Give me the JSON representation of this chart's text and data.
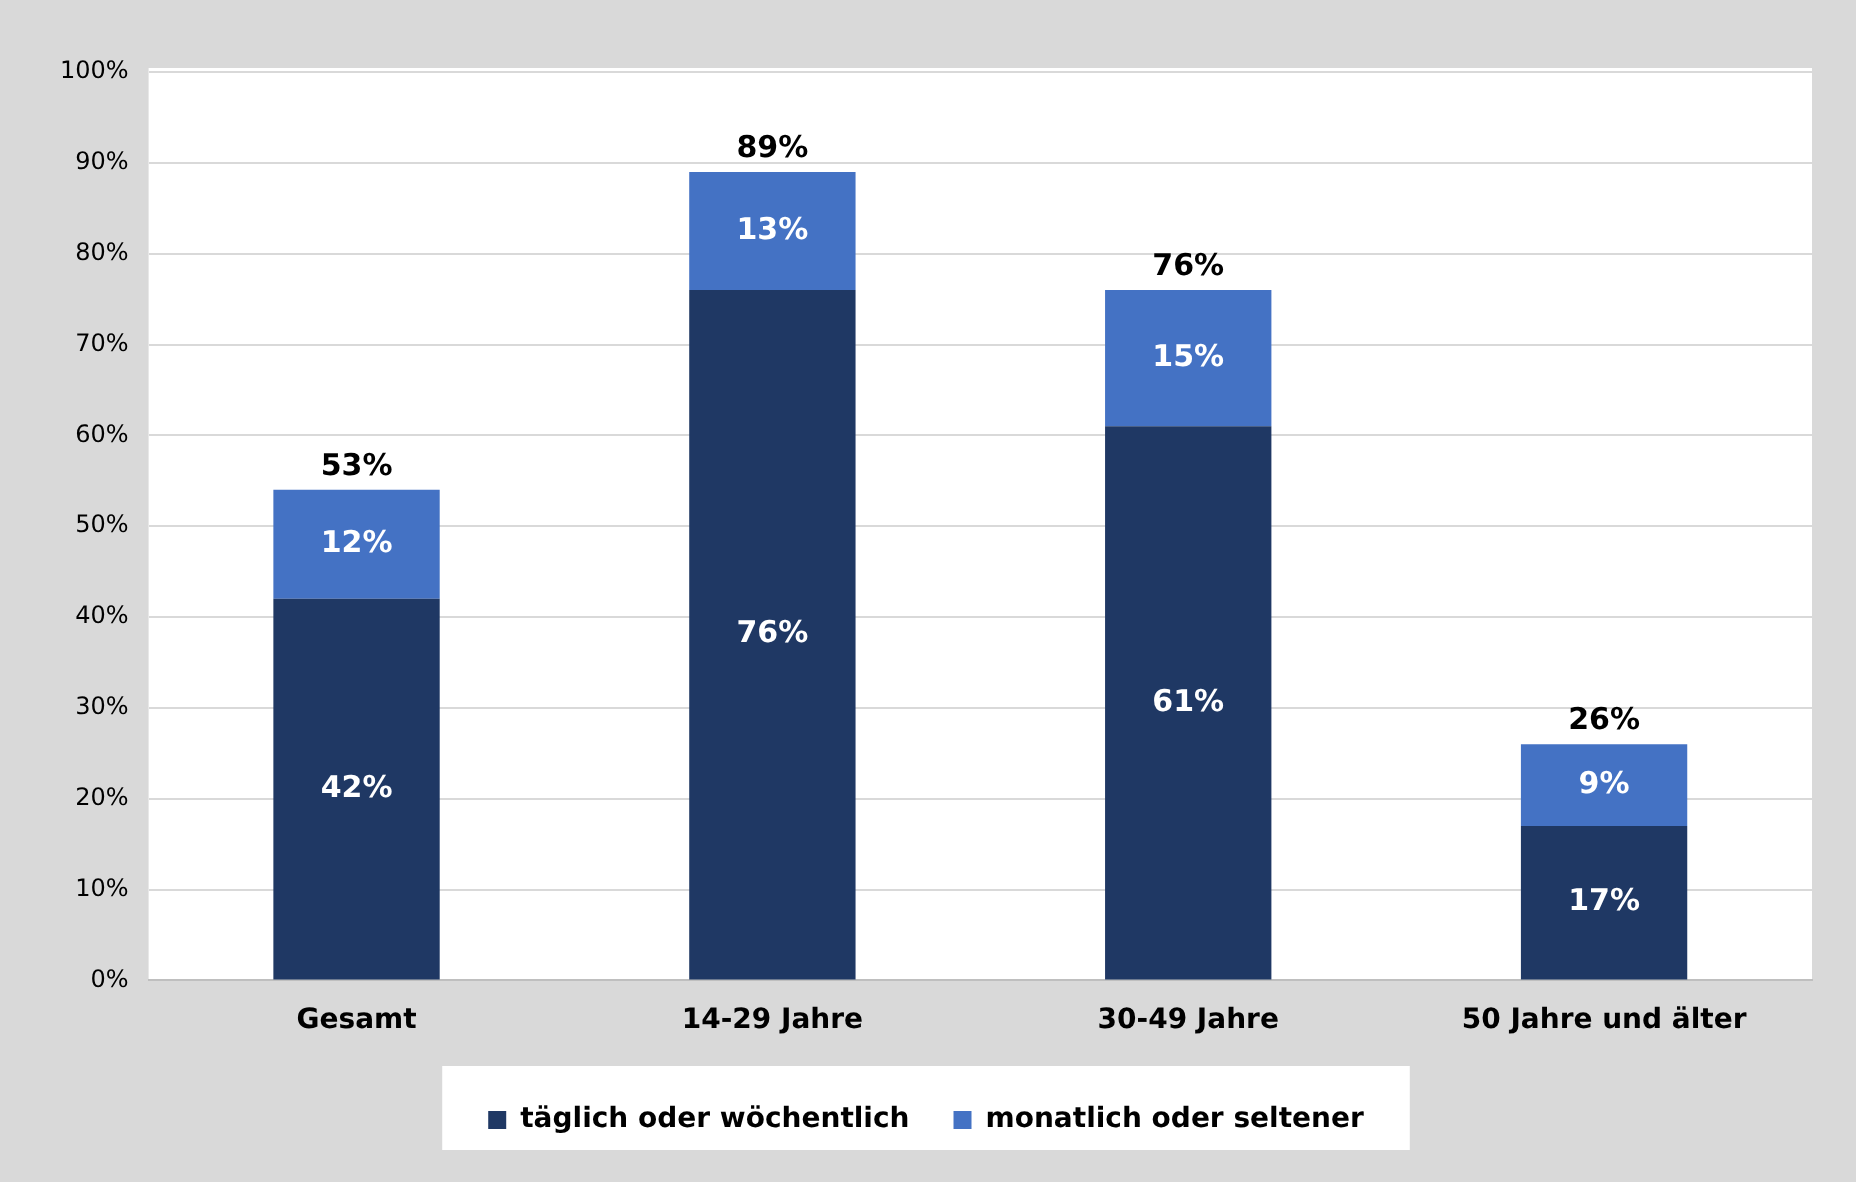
{
  "chart_data": {
    "type": "bar",
    "stacked": true,
    "categories": [
      "Gesamt",
      "14-29 Jahre",
      "30-49 Jahre",
      "50 Jahre und älter"
    ],
    "series": [
      {
        "name": "täglich oder wöchentlich",
        "color": "#1f3864",
        "values": [
          42,
          76,
          61,
          17
        ]
      },
      {
        "name": "monatlich oder seltener",
        "color": "#4472c4",
        "values": [
          12,
          13,
          15,
          9
        ]
      }
    ],
    "ylim": [
      0,
      100
    ],
    "yticks": [
      {
        "value": 0,
        "label": "0%"
      },
      {
        "value": 10,
        "label": "10%"
      },
      {
        "value": 20,
        "label": "20%"
      },
      {
        "value": 30,
        "label": "30%"
      },
      {
        "value": 40,
        "label": "40%"
      },
      {
        "value": 50,
        "label": "50%"
      },
      {
        "value": 60,
        "label": "60%"
      },
      {
        "value": 70,
        "label": "70%"
      },
      {
        "value": 80,
        "label": "80%"
      },
      {
        "value": 90,
        "label": "90%"
      },
      {
        "value": 100,
        "label": "100%"
      }
    ],
    "value_labels": [
      [
        "42%",
        "76%",
        "61%",
        "17%"
      ],
      [
        "12%",
        "13%",
        "15%",
        "9%"
      ]
    ],
    "totals": [
      "53%",
      "89%",
      "76%",
      "26%"
    ],
    "grid": "y",
    "legend": "bottom"
  }
}
